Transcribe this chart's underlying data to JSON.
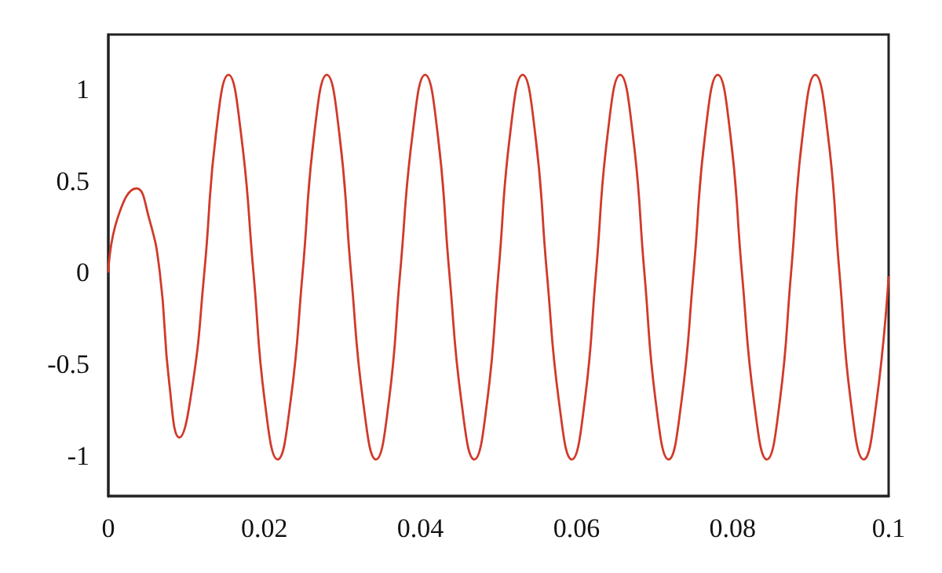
{
  "chart_data": {
    "type": "line",
    "x": [
      0,
      0.0012,
      0.0036,
      0.0052,
      0.0066,
      0.0078,
      0.0091,
      0.0107,
      0.0123,
      0.0138,
      0.0154,
      0.017,
      0.0186,
      0.0201,
      0.0217,
      0.0233,
      0.0249,
      0.0264,
      0.028,
      0.0296,
      0.0311,
      0.0327,
      0.0343,
      0.0359,
      0.0374,
      0.039,
      0.0406,
      0.0422,
      0.0437,
      0.0453,
      0.0469,
      0.0485,
      0.05,
      0.0515,
      0.0531,
      0.0547,
      0.0562,
      0.0578,
      0.0594,
      0.061,
      0.0625,
      0.064,
      0.0656,
      0.0672,
      0.0687,
      0.0702,
      0.0718,
      0.0734,
      0.075,
      0.0765,
      0.0781,
      0.0797,
      0.0812,
      0.0828,
      0.0844,
      0.086,
      0.0875,
      0.089,
      0.0906,
      0.0922,
      0.0937,
      0.0952,
      0.0968,
      0.0984,
      0.1
    ],
    "series": [
      {
        "color": "#d03a2a",
        "values": [
          0,
          0.3,
          0.46,
          0.3,
          0,
          -0.6,
          -0.9,
          -0.64,
          0,
          0.76,
          1.08,
          0.76,
          0,
          -0.72,
          -1.02,
          -0.72,
          0,
          0.76,
          1.08,
          0.76,
          0,
          -0.72,
          -1.02,
          -0.72,
          0,
          0.76,
          1.08,
          0.76,
          0,
          -0.72,
          -1.02,
          -0.72,
          0,
          0.76,
          1.08,
          0.76,
          0,
          -0.72,
          -1.02,
          -0.72,
          0,
          0.76,
          1.08,
          0.76,
          0,
          -0.72,
          -1.02,
          -0.72,
          0,
          0.76,
          1.08,
          0.76,
          0,
          -0.72,
          -1.02,
          -0.72,
          0,
          0.76,
          1.08,
          0.76,
          0,
          -0.72,
          -1.02,
          -0.72,
          -0.02
        ]
      }
    ],
    "xlim": [
      0,
      0.1
    ],
    "xticks": [
      0,
      0.02,
      0.04,
      0.06,
      0.08,
      0.1
    ],
    "ylim": [
      -1.22,
      1.3
    ],
    "yticks": [
      -1,
      -0.5,
      0,
      0.5,
      1
    ],
    "grid": false,
    "marker": "none",
    "line_style": "solid"
  }
}
